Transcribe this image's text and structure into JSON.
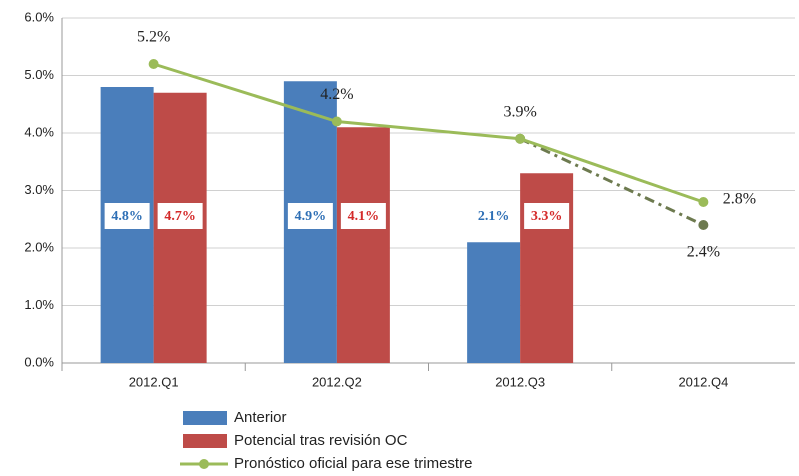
{
  "chart_data": {
    "type": "bar",
    "categories": [
      "2012.Q1",
      "2012.Q2",
      "2012.Q3",
      "2012.Q4"
    ],
    "ylim": [
      0,
      6
    ],
    "yticks": [
      {
        "value": 0,
        "label": "0.0%"
      },
      {
        "value": 1,
        "label": "1.0%"
      },
      {
        "value": 2,
        "label": "2.0%"
      },
      {
        "value": 3,
        "label": "3.0%"
      },
      {
        "value": 4,
        "label": "4.0%"
      },
      {
        "value": 5,
        "label": "5.0%"
      },
      {
        "value": 6,
        "label": "6.0%"
      }
    ],
    "grid": true,
    "series": [
      {
        "name": "Anterior",
        "type": "bar",
        "color": "#4a7ebb",
        "values": [
          4.8,
          4.9,
          2.1,
          null
        ],
        "value_labels": [
          "4.8%",
          "4.9%",
          "2.1%",
          null
        ],
        "label_color": "#2e6fb5"
      },
      {
        "name": "Potencial tras revisión OC",
        "type": "bar",
        "color": "#be4b48",
        "values": [
          4.7,
          4.1,
          3.3,
          null
        ],
        "value_labels": [
          "4.7%",
          "4.1%",
          "3.3%",
          null
        ],
        "label_color": "#d42a2a"
      },
      {
        "name": "Pronóstico oficial para ese trimestre",
        "type": "line",
        "color": "#9bbb59",
        "values": [
          5.2,
          4.2,
          3.9,
          2.8
        ],
        "value_labels": [
          "5.2%",
          "4.2%",
          "3.9%",
          "2.8%"
        ]
      }
    ],
    "dashed_line": {
      "color": "#6d7a4f",
      "values": [
        null,
        null,
        3.9,
        2.4
      ],
      "value_labels": [
        null,
        null,
        null,
        "2.4%"
      ]
    }
  }
}
